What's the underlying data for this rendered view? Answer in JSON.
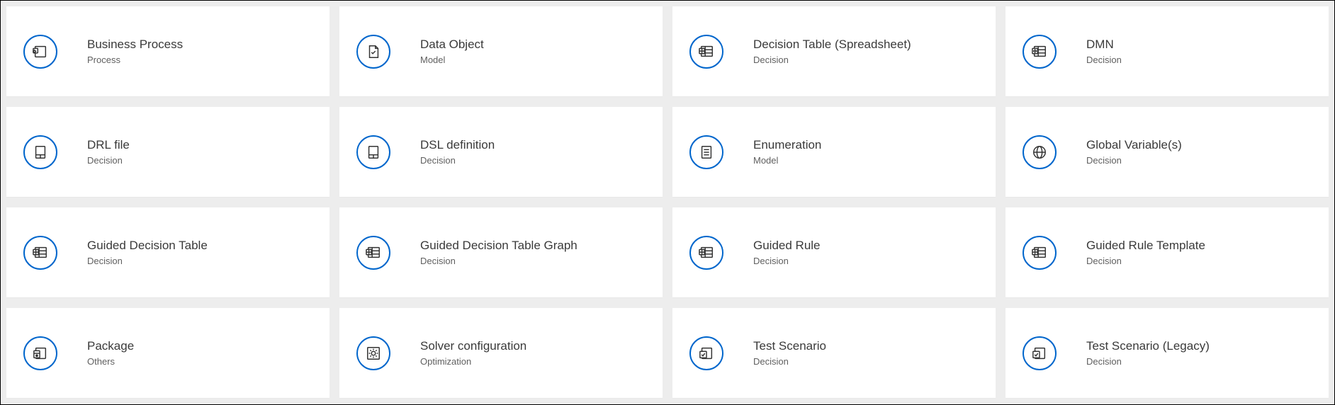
{
  "icon_stroke": "#333333",
  "ring_color": "#0066cc",
  "cards": [
    {
      "title": "Business Process",
      "category": "Process",
      "icon": "process"
    },
    {
      "title": "Data Object",
      "category": "Model",
      "icon": "data-object"
    },
    {
      "title": "Decision Table (Spreadsheet)",
      "category": "Decision",
      "icon": "spreadsheet"
    },
    {
      "title": "DMN",
      "category": "Decision",
      "icon": "dmn"
    },
    {
      "title": "DRL file",
      "category": "Decision",
      "icon": "file"
    },
    {
      "title": "DSL definition",
      "category": "Decision",
      "icon": "file"
    },
    {
      "title": "Enumeration",
      "category": "Model",
      "icon": "enum"
    },
    {
      "title": "Global Variable(s)",
      "category": "Decision",
      "icon": "globe"
    },
    {
      "title": "Guided Decision Table",
      "category": "Decision",
      "icon": "spreadsheet"
    },
    {
      "title": "Guided Decision Table Graph",
      "category": "Decision",
      "icon": "spreadsheet"
    },
    {
      "title": "Guided Rule",
      "category": "Decision",
      "icon": "spreadsheet"
    },
    {
      "title": "Guided Rule Template",
      "category": "Decision",
      "icon": "spreadsheet"
    },
    {
      "title": "Package",
      "category": "Others",
      "icon": "package"
    },
    {
      "title": "Solver configuration",
      "category": "Optimization",
      "icon": "solver"
    },
    {
      "title": "Test Scenario",
      "category": "Decision",
      "icon": "test"
    },
    {
      "title": "Test Scenario (Legacy)",
      "category": "Decision",
      "icon": "test"
    }
  ]
}
